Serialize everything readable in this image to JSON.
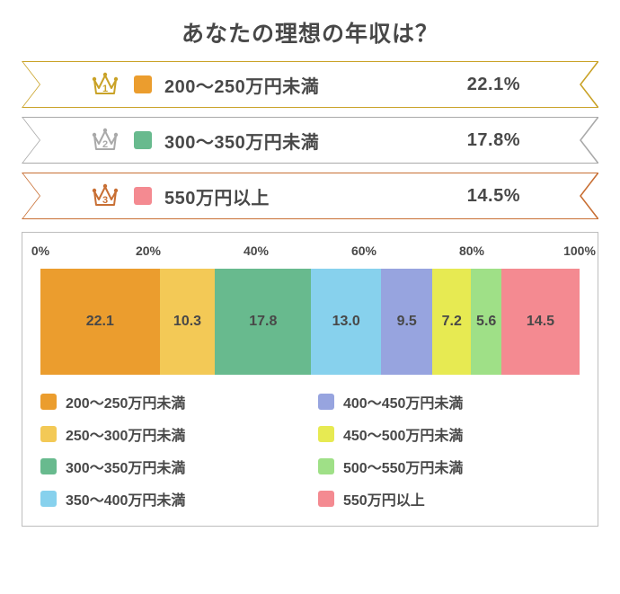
{
  "title": "あなたの理想の年収は？",
  "ranking": [
    {
      "rank": "①",
      "border": "#c9a227",
      "label": "200〜250万円未満",
      "pct": "22.1%",
      "swatch": "#eb9d2e"
    },
    {
      "rank": "②",
      "border": "#a9a9a9",
      "label": "300〜350万円未満",
      "pct": "17.8%",
      "swatch": "#68ba8e"
    },
    {
      "rank": "③",
      "border": "#c86f34",
      "label": "550万円以上",
      "pct": "14.5%",
      "swatch": "#f48a91"
    }
  ],
  "chart": {
    "axis_ticks": [
      {
        "pos": 0,
        "label": "0%"
      },
      {
        "pos": 20,
        "label": "20%"
      },
      {
        "pos": 40,
        "label": "40%"
      },
      {
        "pos": 60,
        "label": "60%"
      },
      {
        "pos": 80,
        "label": "80%"
      },
      {
        "pos": 100,
        "label": "100%"
      }
    ],
    "segments": [
      {
        "value": 22.1,
        "label": "22.1",
        "color": "#eb9d2e",
        "legend": "200〜250万円未満"
      },
      {
        "value": 10.3,
        "label": "10.3",
        "color": "#f3c956",
        "legend": "250〜300万円未満"
      },
      {
        "value": 17.8,
        "label": "17.8",
        "color": "#68ba8e",
        "legend": "300〜350万円未満"
      },
      {
        "value": 13.0,
        "label": "13.0",
        "color": "#87d1ed",
        "legend": "350〜400万円未満"
      },
      {
        "value": 9.5,
        "label": "9.5",
        "color": "#97a4df",
        "legend": "400〜450万円未満"
      },
      {
        "value": 7.2,
        "label": "7.2",
        "color": "#e7ea52",
        "legend": "450〜500万円未満"
      },
      {
        "value": 5.6,
        "label": "5.6",
        "color": "#9fe087",
        "legend": "500〜550万円未満"
      },
      {
        "value": 14.5,
        "label": "14.5",
        "color": "#f48a91",
        "legend": "550万円以上"
      }
    ],
    "legend_order": [
      0,
      4,
      1,
      5,
      2,
      6,
      3,
      7
    ]
  }
}
